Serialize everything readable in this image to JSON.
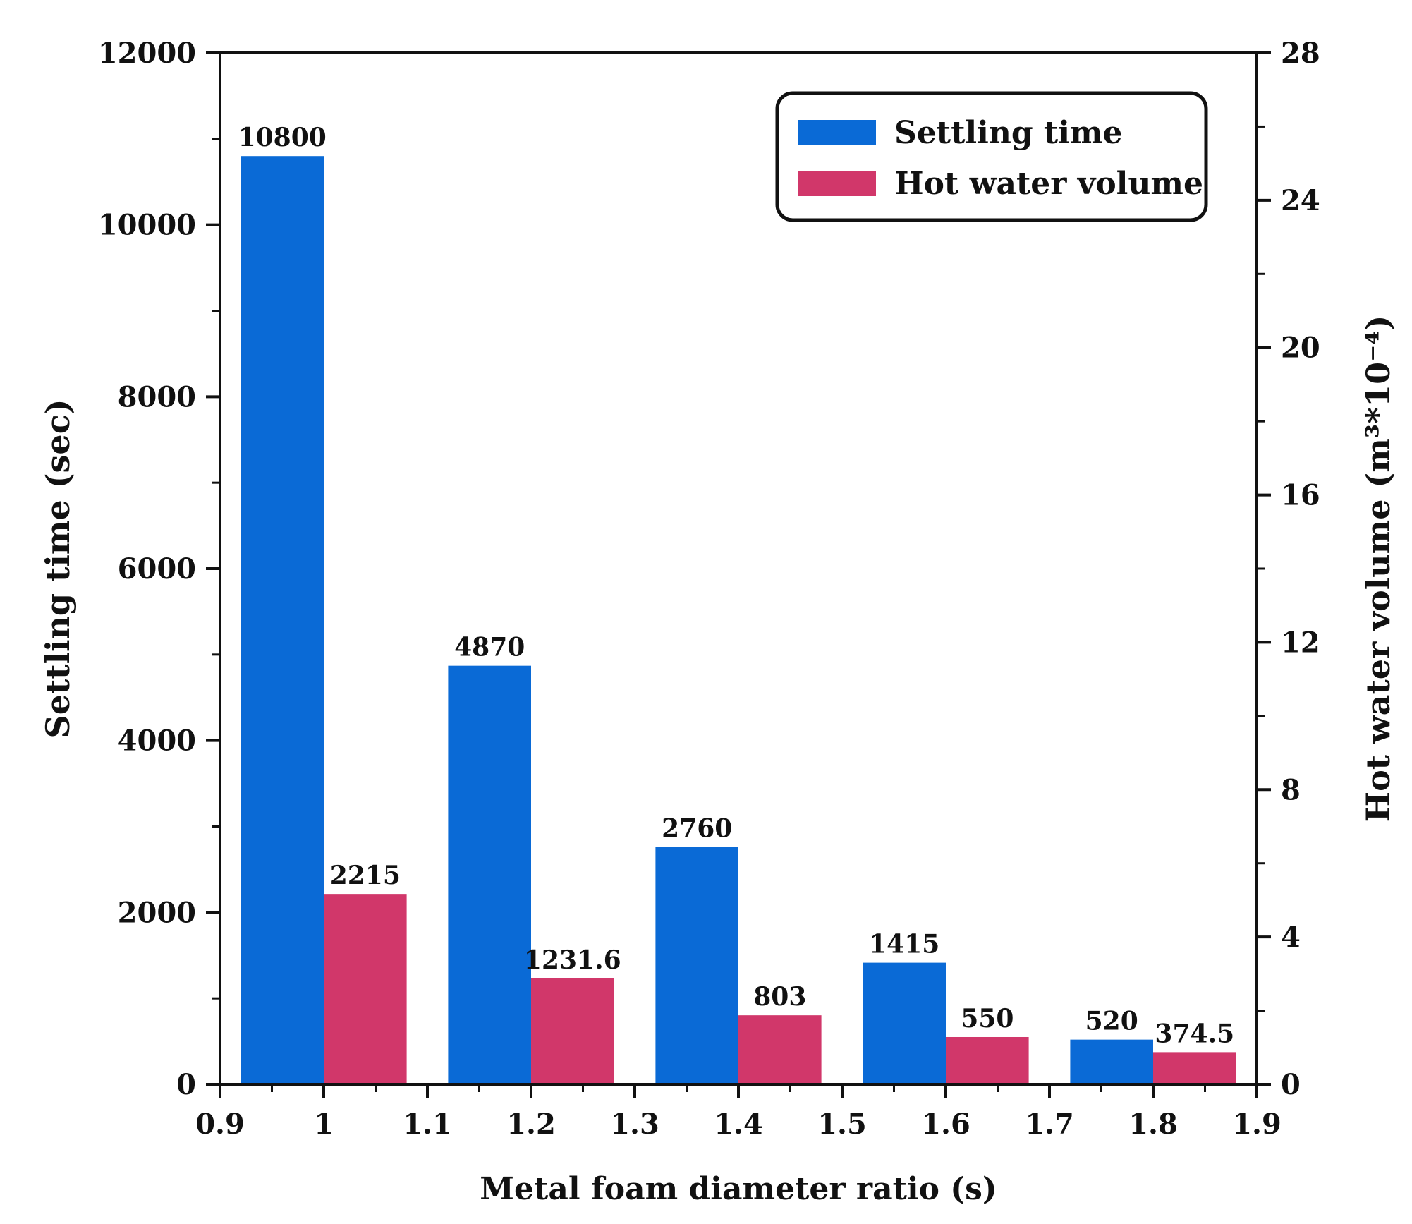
{
  "chart_data": {
    "type": "bar",
    "title": "",
    "xlabel": "Metal foam diameter ratio (s)",
    "ylabel": "Settling time (sec)",
    "y2label": "Hot water volume (m³*10⁻⁴)",
    "xlim": [
      0.9,
      1.9
    ],
    "ylim": [
      0,
      12000
    ],
    "y2lim": [
      0,
      28
    ],
    "x_ticks": [
      "0.9",
      "1",
      "1.1",
      "1.2",
      "1.3",
      "1.4",
      "1.5",
      "1.6",
      "1.7",
      "1.8",
      "1.9"
    ],
    "y_ticks": [
      "0",
      "2000",
      "4000",
      "6000",
      "8000",
      "10000",
      "12000"
    ],
    "y2_ticks": [
      "0",
      "4",
      "8",
      "12",
      "16",
      "20",
      "24",
      "28"
    ],
    "x_tick_values": [
      0.9,
      1.0,
      1.1,
      1.2,
      1.3,
      1.4,
      1.5,
      1.6,
      1.7,
      1.8,
      1.9
    ],
    "y_tick_values": [
      0,
      2000,
      4000,
      6000,
      8000,
      10000,
      12000
    ],
    "y2_tick_values": [
      0,
      4,
      8,
      12,
      16,
      20,
      24,
      28
    ],
    "x_minor_ticks": [
      0.95,
      1.05,
      1.15,
      1.25,
      1.35,
      1.45,
      1.55,
      1.65,
      1.75,
      1.85
    ],
    "y_minor_ticks": [
      1000,
      3000,
      5000,
      7000,
      9000,
      11000
    ],
    "y2_minor_ticks": [
      2,
      6,
      10,
      14,
      18,
      22,
      26
    ],
    "grid": false,
    "legend_position": "top-right",
    "series": [
      {
        "name": "Settling time",
        "color": "#0a6ad6",
        "x_start": [
          0.92,
          1.12,
          1.32,
          1.52,
          1.72
        ],
        "x_end": [
          1.0,
          1.2,
          1.4,
          1.6,
          1.8
        ],
        "values": [
          10800,
          4870,
          2760,
          1415,
          520
        ],
        "labels": [
          "10800",
          "4870",
          "2760",
          "1415",
          "520"
        ]
      },
      {
        "name": "Hot water volume",
        "color": "#d1376a",
        "x_start": [
          1.0,
          1.2,
          1.4,
          1.6,
          1.8
        ],
        "x_end": [
          1.08,
          1.28,
          1.48,
          1.68,
          1.88
        ],
        "values": [
          2215,
          1231.6,
          803,
          550,
          374.5
        ],
        "labels": [
          "2215",
          "1231.6",
          "803",
          "550",
          "374.5"
        ]
      }
    ]
  }
}
